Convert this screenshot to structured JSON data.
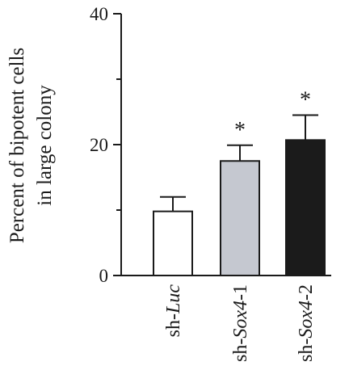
{
  "chart_data": {
    "type": "bar",
    "title": "",
    "ylabel_lines": [
      "Percent of bipotent cells",
      "in large colony"
    ],
    "xlabel": "",
    "ylim": [
      0,
      40
    ],
    "yticks": [
      0,
      20,
      40
    ],
    "yticks_minor": [
      10,
      30
    ],
    "grid": false,
    "legend": "none",
    "categories": [
      {
        "prefix": "sh-",
        "italic": "Luc",
        "suffix": ""
      },
      {
        "prefix": "sh-",
        "italic": "Sox4",
        "suffix": "-1"
      },
      {
        "prefix": "sh-",
        "italic": "Sox4",
        "suffix": "-2"
      }
    ],
    "values": [
      9.8,
      17.5,
      20.7
    ],
    "errors": [
      2.2,
      2.4,
      3.8
    ],
    "significance": [
      "",
      "*",
      "*"
    ],
    "bar_colors": [
      "#ffffff",
      "#c5c8d0",
      "#1b1b1b"
    ],
    "bar_edge_color": "#1a1a1a"
  }
}
